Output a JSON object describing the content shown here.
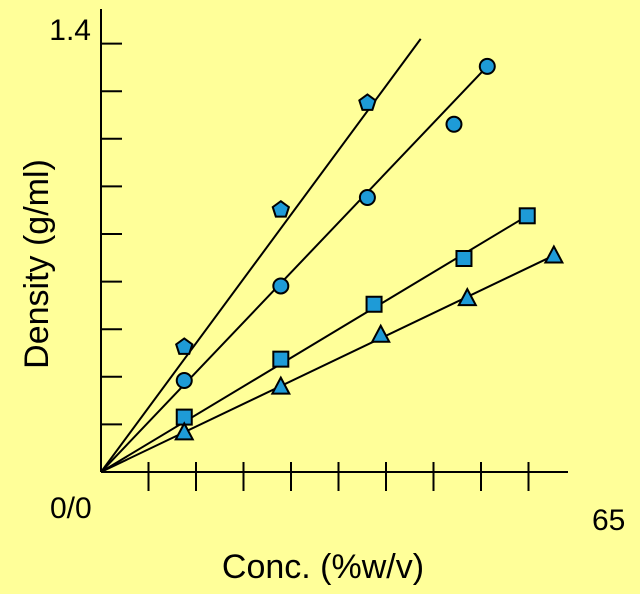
{
  "chart_data": {
    "type": "scatter",
    "title": "",
    "xlabel": "Conc. (%w/v)",
    "ylabel": "Density (g/ml)",
    "xlim": [
      0,
      65
    ],
    "ylim": [
      0,
      1.4
    ],
    "x_tick_labels": {
      "min": "0/0",
      "max": "65"
    },
    "y_tick_labels": {
      "max": "1.4"
    },
    "x_major_ticks": 9,
    "y_major_ticks": 9,
    "grid": false,
    "marker_color": "#1e9bd7",
    "line_color": "#000000",
    "series": [
      {
        "marker": "pentagon",
        "points": [
          [
            12.5,
            0.41
          ],
          [
            27.0,
            0.86
          ],
          [
            40.0,
            1.21
          ]
        ],
        "fit_end": [
          48.0,
          1.42
        ]
      },
      {
        "marker": "circle",
        "points": [
          [
            12.5,
            0.3
          ],
          [
            27.0,
            0.61
          ],
          [
            40.0,
            0.9
          ],
          [
            53.0,
            1.14
          ],
          [
            58.0,
            1.33
          ]
        ],
        "fit_end": [
          58.0,
          1.33
        ]
      },
      {
        "marker": "square",
        "points": [
          [
            12.5,
            0.18
          ],
          [
            27.0,
            0.37
          ],
          [
            41.0,
            0.55
          ],
          [
            54.5,
            0.7
          ],
          [
            64.0,
            0.84
          ]
        ],
        "fit_end": [
          64.0,
          0.84
        ]
      },
      {
        "marker": "triangle",
        "points": [
          [
            12.5,
            0.13
          ],
          [
            27.0,
            0.28
          ],
          [
            42.0,
            0.45
          ],
          [
            55.0,
            0.57
          ],
          [
            68.0,
            0.71
          ]
        ],
        "fit_end": [
          68.0,
          0.71
        ]
      }
    ]
  }
}
